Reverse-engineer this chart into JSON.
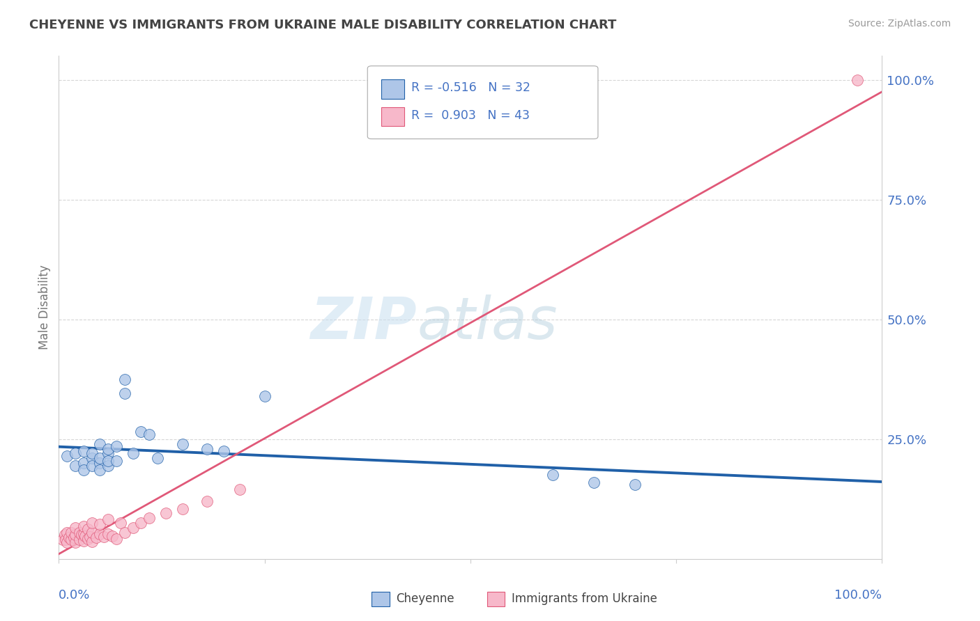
{
  "title": "CHEYENNE VS IMMIGRANTS FROM UKRAINE MALE DISABILITY CORRELATION CHART",
  "source": "Source: ZipAtlas.com",
  "ylabel": "Male Disability",
  "watermark_zip": "ZIP",
  "watermark_atlas": "atlas",
  "legend_entries": [
    {
      "label": "Cheyenne",
      "R": -0.516,
      "N": 32,
      "color": "#aec6e8"
    },
    {
      "label": "Immigrants from Ukraine",
      "R": 0.903,
      "N": 43,
      "color": "#f7b8ca"
    }
  ],
  "cheyenne_x": [
    0.01,
    0.02,
    0.02,
    0.03,
    0.03,
    0.03,
    0.04,
    0.04,
    0.04,
    0.05,
    0.05,
    0.05,
    0.05,
    0.06,
    0.06,
    0.06,
    0.06,
    0.07,
    0.07,
    0.08,
    0.08,
    0.09,
    0.1,
    0.11,
    0.12,
    0.15,
    0.18,
    0.2,
    0.25,
    0.6,
    0.65,
    0.7
  ],
  "cheyenne_y": [
    0.215,
    0.195,
    0.22,
    0.2,
    0.185,
    0.225,
    0.21,
    0.195,
    0.22,
    0.2,
    0.185,
    0.24,
    0.21,
    0.195,
    0.22,
    0.23,
    0.205,
    0.235,
    0.205,
    0.345,
    0.375,
    0.22,
    0.265,
    0.26,
    0.21,
    0.24,
    0.23,
    0.225,
    0.34,
    0.175,
    0.16,
    0.155
  ],
  "ukraine_x": [
    0.005,
    0.007,
    0.008,
    0.01,
    0.01,
    0.012,
    0.015,
    0.015,
    0.018,
    0.02,
    0.02,
    0.02,
    0.025,
    0.025,
    0.028,
    0.03,
    0.03,
    0.03,
    0.032,
    0.035,
    0.035,
    0.038,
    0.04,
    0.04,
    0.04,
    0.045,
    0.05,
    0.05,
    0.055,
    0.06,
    0.06,
    0.065,
    0.07,
    0.075,
    0.08,
    0.09,
    0.1,
    0.11,
    0.13,
    0.15,
    0.18,
    0.22,
    0.97
  ],
  "ukraine_y": [
    0.04,
    0.05,
    0.04,
    0.035,
    0.055,
    0.045,
    0.04,
    0.055,
    0.045,
    0.035,
    0.05,
    0.065,
    0.04,
    0.055,
    0.05,
    0.038,
    0.052,
    0.068,
    0.048,
    0.042,
    0.062,
    0.046,
    0.036,
    0.055,
    0.075,
    0.045,
    0.052,
    0.072,
    0.046,
    0.052,
    0.082,
    0.048,
    0.042,
    0.075,
    0.055,
    0.065,
    0.075,
    0.085,
    0.095,
    0.105,
    0.12,
    0.145,
    1.0
  ],
  "cheyenne_line_color": "#2060a8",
  "ukraine_line_color": "#e05878",
  "background_color": "#ffffff",
  "grid_color": "#cccccc",
  "title_color": "#444444",
  "tick_color": "#4472c4",
  "axis_label_color": "#777777",
  "ylim": [
    0,
    1.05
  ],
  "xlim": [
    0,
    1.0
  ],
  "ytick_positions": [
    0.25,
    0.5,
    0.75,
    1.0
  ],
  "ytick_labels": [
    "25.0%",
    "50.0%",
    "75.0%",
    "100.0%"
  ]
}
